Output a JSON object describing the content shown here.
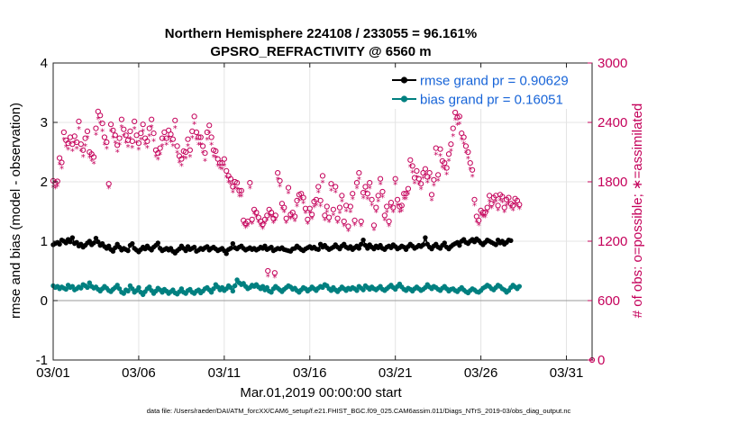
{
  "chart_data": {
    "type": "line",
    "title": "Northern Hemisphere 224108 / 233055 = 96.161%",
    "subtitle": "GPSRO_REFRACTIVITY @ 6560 m",
    "xlabel": "Mar.01,2019 00:00:00 start",
    "ylabel": "rmse and bias (model - observation)",
    "ylabel_right": "# of obs: o=possible; ∗=assimilated",
    "footer": "data file: /Users/raeder/DAI/ATM_forcXX/CAM6_setup/f.e21.FHIST_BGC.f09_025.CAM6assim.011/Diags_NTrS_2019-03/obs_diag_output.nc",
    "xlim": [
      1,
      32.5
    ],
    "ylim": [
      -1,
      4
    ],
    "ylim_right": [
      0,
      3000
    ],
    "x_tick_labels": [
      "03/01",
      "03/06",
      "03/11",
      "03/16",
      "03/21",
      "03/26",
      "03/31"
    ],
    "y_tick_labels": [
      "4",
      "3",
      "2",
      "1",
      "0",
      "-1"
    ],
    "y_right_tick_labels": [
      "3000",
      "2400",
      "1800",
      "1200",
      "600",
      "0"
    ],
    "grid": true,
    "legend_position": "top-right",
    "colors": {
      "rmse": "#000000",
      "bias": "#008080",
      "obs": "#c4005a",
      "legend_text": "#1764d8",
      "zero_line": "#9a9a9a"
    },
    "series": [
      {
        "name": "rmse grand pr = 0.90629",
        "axis": "left",
        "values": [
          0.94,
          0.96,
          0.98,
          0.95,
          1.02,
          1.0,
          0.97,
          1.03,
          0.99,
          1.06,
          0.96,
          0.98,
          0.92,
          0.95,
          0.9,
          0.93,
          0.97,
          1.0,
          0.94,
          0.97,
          1.05,
          0.99,
          0.93,
          0.96,
          0.91,
          0.88,
          0.92,
          0.86,
          0.83,
          0.89,
          0.95,
          0.9,
          0.85,
          0.88,
          0.86,
          0.84,
          0.93,
          0.96,
          0.88,
          0.85,
          0.82,
          0.86,
          0.9,
          0.87,
          0.92,
          0.88,
          0.85,
          0.9,
          0.93,
          0.97,
          0.88,
          0.84,
          0.86,
          0.88,
          0.85,
          0.88,
          0.83,
          0.8,
          0.84,
          0.87,
          0.92,
          0.88,
          0.84,
          0.91,
          0.86,
          0.88,
          0.9,
          0.83,
          0.85,
          0.88,
          0.86,
          0.89,
          0.91,
          0.85,
          0.88,
          0.9,
          0.87,
          0.84,
          0.86,
          0.88,
          0.84,
          0.79,
          0.86,
          0.88,
          0.96,
          0.89,
          0.87,
          0.9,
          0.92,
          0.88,
          0.85,
          0.87,
          0.89,
          0.86,
          0.88,
          0.85,
          0.87,
          0.9,
          0.88,
          0.92,
          0.86,
          0.88,
          0.9,
          0.84,
          0.86,
          0.88,
          0.87,
          0.89,
          0.86,
          0.85,
          0.84,
          0.83,
          0.87,
          0.88,
          0.92,
          0.89,
          0.86,
          0.84,
          0.87,
          0.89,
          0.91,
          0.88,
          0.9,
          0.87,
          0.86,
          0.95,
          0.9,
          0.93,
          0.89,
          0.86,
          0.88,
          0.9,
          0.94,
          0.9,
          0.87,
          0.92,
          0.95,
          0.9,
          0.88,
          0.91,
          0.86,
          0.89,
          0.92,
          0.88,
          0.95,
          1.02,
          0.93,
          0.88,
          0.94,
          0.9,
          0.87,
          0.92,
          0.89,
          0.93,
          0.88,
          0.86,
          0.9,
          0.92,
          0.89,
          0.94,
          0.91,
          0.87,
          0.89,
          0.92,
          0.9,
          0.86,
          0.91,
          0.95,
          0.92,
          0.88,
          0.9,
          0.93,
          0.91,
          0.94,
          1.06,
          0.95,
          0.9,
          0.87,
          0.92,
          0.95,
          0.9,
          0.88,
          0.93,
          0.97,
          0.9,
          0.87,
          0.91,
          0.94,
          0.96,
          0.98,
          0.93,
          1.0,
          1.03,
          0.98,
          0.96,
          1.0,
          1.03,
          0.99,
          1.04,
          1.01,
          0.97,
          0.94,
          0.98,
          1.02,
          1.0,
          0.98,
          0.96,
          0.94,
          1.02,
          0.97,
          1.0,
          0.95,
          0.98,
          1.02,
          1.01
        ]
      },
      {
        "name": "bias grand pr = 0.16051",
        "axis": "left",
        "values": [
          0.25,
          0.22,
          0.24,
          0.2,
          0.23,
          0.21,
          0.19,
          0.26,
          0.22,
          0.24,
          0.18,
          0.2,
          0.23,
          0.21,
          0.27,
          0.25,
          0.22,
          0.3,
          0.24,
          0.21,
          0.23,
          0.19,
          0.16,
          0.2,
          0.24,
          0.21,
          0.17,
          0.15,
          0.19,
          0.22,
          0.26,
          0.2,
          0.14,
          0.12,
          0.18,
          0.16,
          0.25,
          0.2,
          0.14,
          0.17,
          0.22,
          0.14,
          0.1,
          0.15,
          0.2,
          0.23,
          0.17,
          0.12,
          0.16,
          0.21,
          0.18,
          0.14,
          0.19,
          0.16,
          0.12,
          0.15,
          0.18,
          0.13,
          0.11,
          0.15,
          0.2,
          0.14,
          0.12,
          0.17,
          0.19,
          0.14,
          0.12,
          0.16,
          0.18,
          0.13,
          0.16,
          0.2,
          0.22,
          0.18,
          0.14,
          0.2,
          0.27,
          0.23,
          0.18,
          0.22,
          0.17,
          0.2,
          0.25,
          0.22,
          0.16,
          0.25,
          0.35,
          0.3,
          0.27,
          0.29,
          0.24,
          0.2,
          0.22,
          0.26,
          0.24,
          0.27,
          0.23,
          0.2,
          0.24,
          0.18,
          0.22,
          0.16,
          0.14,
          0.2,
          0.24,
          0.21,
          0.18,
          0.15,
          0.19,
          0.22,
          0.25,
          0.23,
          0.19,
          0.21,
          0.17,
          0.14,
          0.18,
          0.22,
          0.2,
          0.16,
          0.19,
          0.23,
          0.2,
          0.17,
          0.21,
          0.24,
          0.22,
          0.27,
          0.25,
          0.2,
          0.17,
          0.22,
          0.18,
          0.15,
          0.19,
          0.23,
          0.2,
          0.17,
          0.21,
          0.19,
          0.22,
          0.2,
          0.17,
          0.24,
          0.21,
          0.18,
          0.25,
          0.22,
          0.19,
          0.23,
          0.2,
          0.18,
          0.21,
          0.24,
          0.19,
          0.17,
          0.2,
          0.23,
          0.26,
          0.22,
          0.19,
          0.24,
          0.28,
          0.23,
          0.19,
          0.17,
          0.21,
          0.19,
          0.16,
          0.2,
          0.23,
          0.2,
          0.17,
          0.19,
          0.22,
          0.27,
          0.23,
          0.2,
          0.24,
          0.22,
          0.19,
          0.17,
          0.21,
          0.24,
          0.2,
          0.16,
          0.19,
          0.2,
          0.17,
          0.15,
          0.19,
          0.22,
          0.18,
          0.15,
          0.13,
          0.17,
          0.2,
          0.18,
          0.15,
          0.14,
          0.17,
          0.21,
          0.23,
          0.26,
          0.24,
          0.2,
          0.18,
          0.22,
          0.26,
          0.24,
          0.2,
          0.18,
          0.14,
          0.17,
          0.22,
          0.26,
          0.23,
          0.2,
          0.24
        ]
      },
      {
        "name": "obs possible",
        "axis": "right",
        "values": [
          1810,
          1790,
          1805,
          2040,
          1995,
          2300,
          2220,
          2190,
          2250,
          2180,
          2260,
          2200,
          2410,
          2180,
          2120,
          2240,
          2310,
          2100,
          2080,
          2050,
          2340,
          2510,
          2470,
          2390,
          2250,
          2200,
          1780,
          2380,
          2320,
          2270,
          2170,
          2240,
          2430,
          2330,
          2270,
          2220,
          2310,
          2210,
          2410,
          2270,
          2190,
          2290,
          2380,
          2240,
          2210,
          2340,
          2430,
          2290,
          2120,
          2090,
          2140,
          2240,
          2300,
          2240,
          2320,
          2280,
          2230,
          2420,
          2160,
          2060,
          2030,
          2110,
          2100,
          2230,
          2120,
          2310,
          2460,
          2300,
          2250,
          2250,
          2160,
          2090,
          2300,
          2370,
          2250,
          2120,
          2110,
          2030,
          1990,
          1990,
          2030,
          1910,
          1860,
          1830,
          1750,
          1800,
          1790,
          1710,
          1710,
          1410,
          1380,
          1400,
          1790,
          1420,
          1520,
          1490,
          1440,
          1400,
          1370,
          1420,
          1460,
          1520,
          1490,
          1430,
          1460,
          1890,
          1810,
          1580,
          1540,
          1430,
          1740,
          1470,
          1490,
          1450,
          1610,
          1670,
          1680,
          1640,
          1530,
          1420,
          1530,
          1470,
          1600,
          1620,
          1750,
          1610,
          1860,
          1460,
          1550,
          1440,
          1780,
          1520,
          1750,
          1430,
          1540,
          1660,
          1400,
          1560,
          1350,
          1550,
          1680,
          1410,
          1790,
          1890,
          1400,
          1690,
          1750,
          1680,
          1790,
          1620,
          1360,
          1540,
          1660,
          1830,
          1700,
          1460,
          1550,
          1400,
          1590,
          1540,
          1830,
          1620,
          1550,
          1560,
          1680,
          1680,
          1730,
          2020,
          1960,
          1840,
          1910,
          1830,
          1780,
          1890,
          1930,
          1850,
          1890,
          1670,
          1820,
          2140,
          1870,
          2130,
          2010,
          1990,
          1940,
          2080,
          2180,
          2340,
          2500,
          2450,
          2460,
          2290,
          2250,
          2160,
          2100,
          1990,
          1920,
          1620,
          1450,
          1410,
          1510,
          1490,
          1490,
          1540,
          1660,
          1580,
          1640,
          1660,
          1560,
          1670,
          1650,
          1540,
          1620,
          1640,
          1580,
          1560,
          1630,
          1610,
          1570
        ]
      },
      {
        "name": "obs assimilated",
        "axis": "right",
        "values": [
          1750,
          1740,
          1760,
          1980,
          1940,
          2230,
          2160,
          2130,
          2190,
          2120,
          2200,
          2140,
          2340,
          2120,
          2060,
          2170,
          2250,
          2050,
          2020,
          1990,
          2280,
          2440,
          2400,
          2320,
          2180,
          2140,
          1740,
          2320,
          2250,
          2200,
          2110,
          2180,
          2360,
          2270,
          2200,
          2160,
          2240,
          2150,
          2340,
          2200,
          2130,
          2230,
          2320,
          2180,
          2150,
          2270,
          2360,
          2220,
          2060,
          2030,
          2080,
          2170,
          2230,
          2180,
          2250,
          2210,
          2170,
          2350,
          2100,
          2000,
          1970,
          2050,
          2040,
          2170,
          2060,
          2250,
          2390,
          2230,
          2180,
          2180,
          2100,
          2020,
          2230,
          2300,
          2180,
          2060,
          2050,
          1970,
          1940,
          1930,
          1970,
          1850,
          1800,
          1780,
          1700,
          1740,
          1730,
          1660,
          1660,
          1370,
          1340,
          1360,
          1740,
          1380,
          1480,
          1450,
          1400,
          1360,
          1330,
          1380,
          1420,
          1470,
          1450,
          1390,
          1420,
          1830,
          1760,
          1530,
          1500,
          1390,
          1690,
          1430,
          1450,
          1410,
          1560,
          1620,
          1630,
          1590,
          1490,
          1380,
          1490,
          1430,
          1550,
          1570,
          1700,
          1560,
          1800,
          1420,
          1500,
          1400,
          1720,
          1470,
          1700,
          1390,
          1490,
          1610,
          1360,
          1510,
          1310,
          1500,
          1630,
          1370,
          1740,
          1830,
          1360,
          1640,
          1700,
          1630,
          1740,
          1570,
          1320,
          1500,
          1610,
          1780,
          1650,
          1420,
          1500,
          1360,
          1540,
          1500,
          1780,
          1570,
          1500,
          1510,
          1630,
          1630,
          1680,
          1960,
          1900,
          1790,
          1850,
          1780,
          1730,
          1840,
          1880,
          1800,
          1840,
          1620,
          1770,
          2080,
          1820,
          2070,
          1950,
          1930,
          1880,
          2020,
          2120,
          2270,
          2430,
          2380,
          2390,
          2230,
          2190,
          2100,
          2040,
          1930,
          1860,
          1570,
          1400,
          1370,
          1470,
          1450,
          1450,
          1500,
          1610,
          1540,
          1590,
          1610,
          1520,
          1620,
          1600,
          1500,
          1570,
          1590,
          1540,
          1520,
          1580,
          1560,
          1530
        ]
      },
      {
        "name": "obs possible (extra)",
        "axis": "right",
        "x": [
          13.55,
          13.95,
          32.5
        ],
        "values": [
          900,
          880,
          0
        ]
      },
      {
        "name": "obs assimilated (extra)",
        "axis": "right",
        "x": [
          13.55,
          13.95,
          32.5
        ],
        "values": [
          850,
          840,
          0
        ]
      }
    ]
  }
}
